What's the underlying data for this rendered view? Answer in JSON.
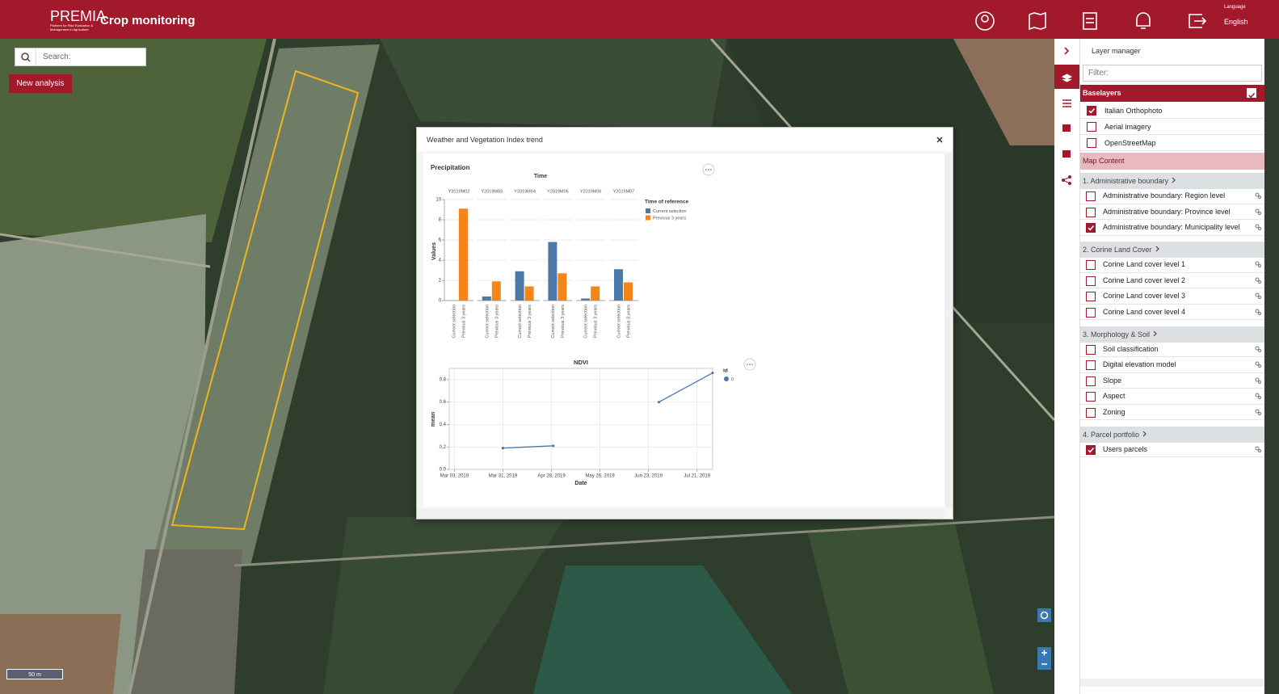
{
  "header": {
    "logo": "PREMIA",
    "logo_subtitle": "Platform for Risk Evaluation & Management in Agriculture",
    "title": "Crop monitoring",
    "language_label": "Language",
    "language": "English"
  },
  "map": {
    "search_placeholder": "Search:",
    "new_analysis": "New analysis",
    "scale": "50 m"
  },
  "dialog": {
    "title": "Weather and Vegetation Index trend"
  },
  "chart_data": [
    {
      "type": "bar",
      "title": "Precipitation",
      "x_title": "Time",
      "y_title": "Values",
      "legend_title": "Time of reference",
      "categories": [
        "Y2019M02",
        "Y2019M03",
        "Y2019M04",
        "Y2019M05",
        "Y2019M06",
        "Y2019M07"
      ],
      "series": [
        {
          "name": "Current selection",
          "color": "#4c78a8",
          "values": [
            0,
            0.4,
            2.9,
            5.8,
            0.2,
            3.1
          ]
        },
        {
          "name": "Previous 3 years",
          "color": "#f58518",
          "values": [
            9.1,
            1.9,
            1.4,
            2.7,
            1.4,
            1.8
          ]
        }
      ],
      "ylim": [
        0,
        10
      ],
      "yticks": [
        0,
        2,
        4,
        6,
        8,
        10
      ],
      "grid": true
    },
    {
      "type": "line",
      "title": "NDVI",
      "x_title": "Date",
      "y_title": "mean",
      "legend_title": "id",
      "x": [
        "2019-03-31",
        "2019-04-29",
        "2019-05-29",
        "2019-06-29",
        "2019-07-30"
      ],
      "series": [
        {
          "name": "0",
          "color": "#4c78a8",
          "values": [
            0.19,
            0.21,
            null,
            0.6,
            0.86
          ]
        }
      ],
      "xlim": [
        "2019-02-28",
        "2019-07-30"
      ],
      "xticks": [
        {
          "value": "2019-03-03",
          "label": "Mar 03, 2019"
        },
        {
          "value": "2019-03-31",
          "label": "Mar 31, 2019"
        },
        {
          "value": "2019-04-28",
          "label": "Apr 28, 2019"
        },
        {
          "value": "2019-05-26",
          "label": "May 26, 2019"
        },
        {
          "value": "2019-06-23",
          "label": "Jun 23, 2019"
        },
        {
          "value": "2019-07-21",
          "label": "Jul 21, 2019"
        }
      ],
      "ylim": [
        0,
        0.9
      ],
      "yticks": [
        {
          "value": 0,
          "label": "0.0"
        },
        0.2,
        0.4,
        0.6,
        0.8
      ],
      "grid": true
    }
  ],
  "layer_manager": {
    "title": "Layer manager",
    "filter_placeholder": "Filter:",
    "baselayers": {
      "title": "Baselayers",
      "checked": true,
      "items": [
        {
          "label": "Italian Orthophoto",
          "checked": true
        },
        {
          "label": "Aerial imagery",
          "checked": false
        },
        {
          "label": "OpenStreetMap",
          "checked": false
        }
      ]
    },
    "map_content": "Map Content",
    "groups": [
      {
        "title": "1. Administrative boundary",
        "items": [
          {
            "label": "Administrative boundary: Region level",
            "checked": false
          },
          {
            "label": "Administrative boundary: Province level",
            "checked": false
          },
          {
            "label": "Administrative boundary: Municipality level",
            "checked": true
          }
        ]
      },
      {
        "title": "2. Corine Land Cover",
        "items": [
          {
            "label": "Corine Land cover level 1",
            "checked": false
          },
          {
            "label": "Corine Land cover level 2",
            "checked": false
          },
          {
            "label": "Corine Land cover level 3",
            "checked": false
          },
          {
            "label": "Corine Land cover level 4",
            "checked": false
          }
        ]
      },
      {
        "title": "3. Morphology & Soil",
        "items": [
          {
            "label": "Soil classification",
            "checked": false
          },
          {
            "label": "Digital elevation model",
            "checked": false
          },
          {
            "label": "Slope",
            "checked": false
          },
          {
            "label": "Aspect",
            "checked": false
          },
          {
            "label": "Zoning",
            "checked": false
          }
        ]
      },
      {
        "title": "4. Parcel portfolio",
        "items": [
          {
            "label": "Users parcels",
            "checked": true
          }
        ]
      }
    ]
  }
}
